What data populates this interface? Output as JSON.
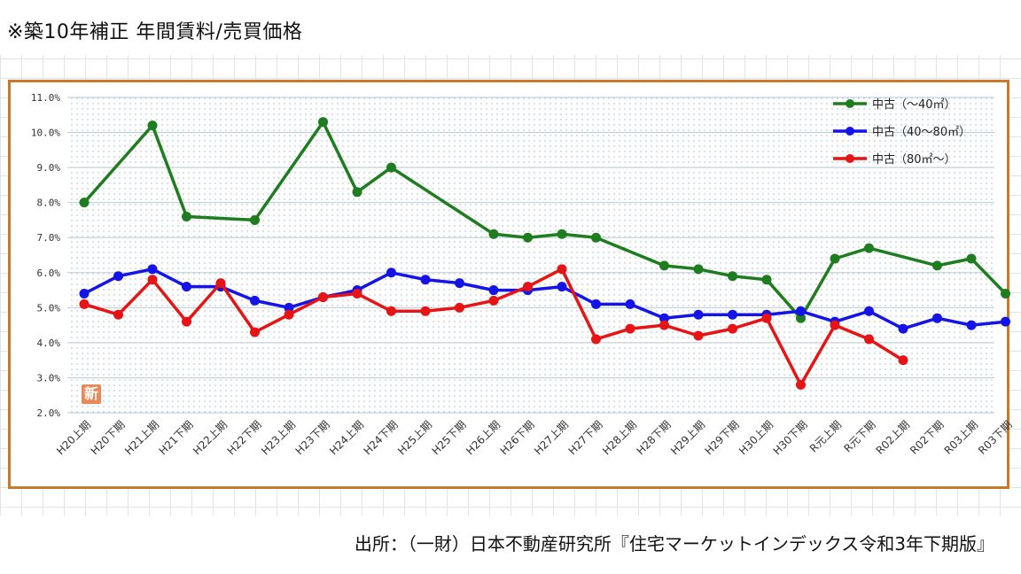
{
  "header": {
    "title": "※築10年補正 年間賃料/売買価格"
  },
  "badge": {
    "label": "新"
  },
  "source": {
    "text": "出所：（一財）日本不動産研究所『住宅マーケットインデックス令和3年下期版』"
  },
  "chart_data": {
    "type": "line",
    "title": "",
    "xlabel": "",
    "ylabel": "",
    "ylim": [
      2.0,
      11.0
    ],
    "yticks": [
      "2.0%",
      "3.0%",
      "4.0%",
      "5.0%",
      "6.0%",
      "7.0%",
      "8.0%",
      "9.0%",
      "10.0%",
      "11.0%"
    ],
    "grid": true,
    "legend_position": "top-right",
    "categories": [
      "H20上期",
      "H20下期",
      "H21上期",
      "H21下期",
      "H22上期",
      "H22下期",
      "H23上期",
      "H23下期",
      "H24上期",
      "H24下期",
      "H25上期",
      "H25下期",
      "H26上期",
      "H26下期",
      "H27上期",
      "H27下期",
      "H28上期",
      "H28下期",
      "H29上期",
      "H29下期",
      "H30上期",
      "H30下期",
      "R元上期",
      "R元下期",
      "R02上期",
      "R02下期",
      "R03上期",
      "R03下期"
    ],
    "series": [
      {
        "name": "中古（～40㎡）",
        "color": "#1e7d1e",
        "values": [
          8.0,
          null,
          10.2,
          7.6,
          null,
          7.5,
          null,
          10.3,
          8.3,
          9.0,
          null,
          null,
          7.1,
          7.0,
          7.1,
          7.0,
          null,
          6.2,
          6.1,
          5.9,
          5.8,
          4.7,
          6.4,
          6.7,
          null,
          6.2,
          6.4,
          5.4
        ]
      },
      {
        "name": "中古（40～80㎡）",
        "color": "#1414e6",
        "values": [
          5.4,
          5.9,
          6.1,
          5.6,
          5.6,
          5.2,
          5.0,
          5.3,
          5.5,
          6.0,
          5.8,
          5.7,
          5.5,
          5.5,
          5.6,
          5.1,
          5.1,
          4.7,
          4.8,
          4.8,
          4.8,
          4.9,
          4.6,
          4.9,
          4.4,
          4.7,
          4.5,
          4.6
        ]
      },
      {
        "name": "中古（80㎡～）",
        "color": "#e61414",
        "values": [
          5.1,
          4.8,
          5.8,
          4.6,
          5.7,
          4.3,
          4.8,
          5.3,
          5.4,
          4.9,
          4.9,
          5.0,
          5.2,
          5.6,
          6.1,
          4.1,
          4.4,
          4.5,
          4.2,
          4.4,
          4.7,
          2.8,
          4.5,
          4.1,
          3.5,
          null,
          null,
          null
        ]
      }
    ]
  }
}
